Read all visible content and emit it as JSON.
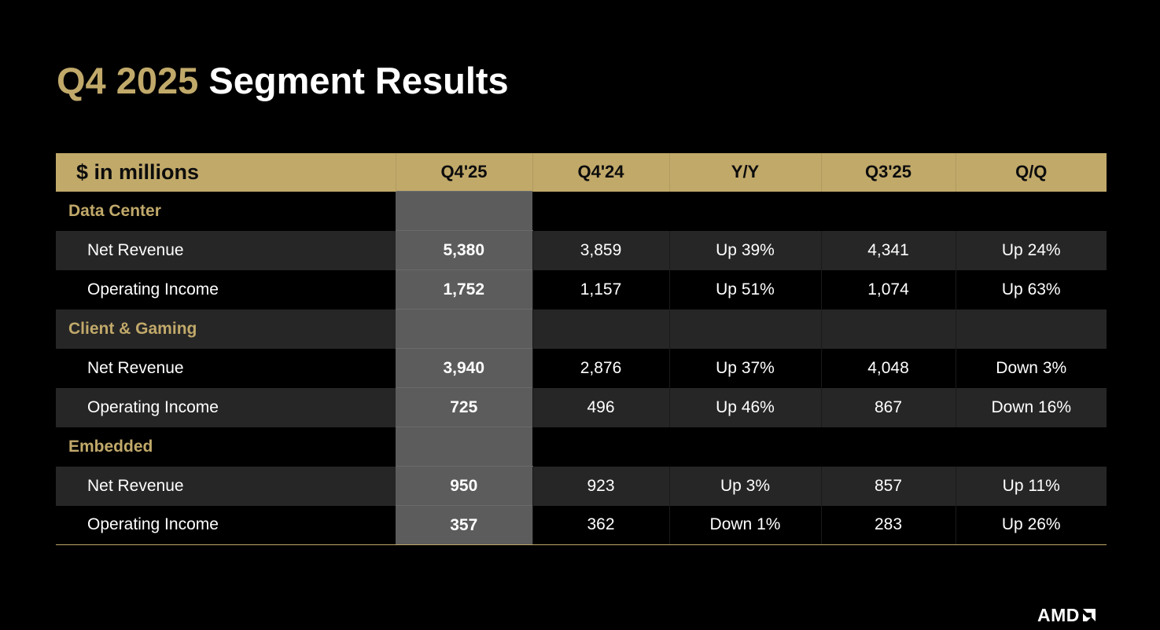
{
  "title": {
    "accent": "Q4 2025",
    "rest": "Segment Results"
  },
  "table": {
    "headers": [
      "$ in millions",
      "Q4'25",
      "Q4'24",
      "Y/Y",
      "Q3'25",
      "Q/Q"
    ],
    "segments": [
      {
        "name": "Data Center",
        "rows": [
          {
            "label": "Net Revenue",
            "q4_25": "5,380",
            "q4_24": "3,859",
            "yy": "Up 39%",
            "q3_25": "4,341",
            "qq": "Up 24%"
          },
          {
            "label": "Operating Income",
            "q4_25": "1,752",
            "q4_24": "1,157",
            "yy": "Up 51%",
            "q3_25": "1,074",
            "qq": "Up 63%"
          }
        ]
      },
      {
        "name": "Client & Gaming",
        "rows": [
          {
            "label": "Net Revenue",
            "q4_25": "3,940",
            "q4_24": "2,876",
            "yy": "Up 37%",
            "q3_25": "4,048",
            "qq": "Down 3%"
          },
          {
            "label": "Operating Income",
            "q4_25": "725",
            "q4_24": "496",
            "yy": "Up 46%",
            "q3_25": "867",
            "qq": "Down 16%"
          }
        ]
      },
      {
        "name": "Embedded",
        "rows": [
          {
            "label": "Net Revenue",
            "q4_25": "950",
            "q4_24": "923",
            "yy": "Up 3%",
            "q3_25": "857",
            "qq": "Up 11%"
          },
          {
            "label": "Operating Income",
            "q4_25": "357",
            "q4_24": "362",
            "yy": "Down 1%",
            "q3_25": "283",
            "qq": "Up 26%"
          }
        ]
      }
    ]
  },
  "logo": {
    "text": "AMD",
    "icon": "amd-arrow-icon"
  },
  "colors": {
    "background": "#000000",
    "accent_gold": "#c1a96a",
    "row_band": "#262626",
    "highlight_column": "#5c5c5c",
    "text": "#ffffff"
  }
}
